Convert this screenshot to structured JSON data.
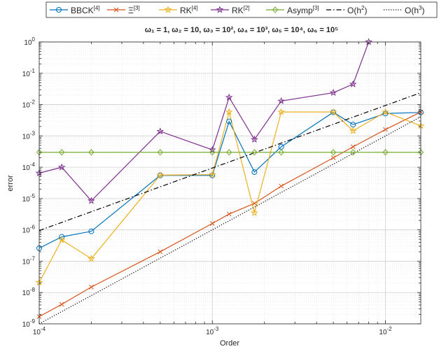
{
  "chart_data": {
    "type": "line",
    "title": "ω₁ = 1, ω₂ = 10, ω₃ = 10², ω₄ = 10³, ω₅ = 10⁴, ω₆ = 10⁵",
    "xlabel": "Order",
    "ylabel": "error",
    "xscale": "log",
    "yscale": "log",
    "xlim": [
      0.0001,
      0.016
    ],
    "ylim": [
      1e-09,
      1
    ],
    "grid": true,
    "minor_grid": true,
    "legend_position": "top, outside, horizontal",
    "x_ticks": [
      {
        "value": 0.0001,
        "base": "10",
        "exp": "-4"
      },
      {
        "value": 0.001,
        "base": "10",
        "exp": "-3"
      },
      {
        "value": 0.01,
        "base": "10",
        "exp": "-2"
      }
    ],
    "y_ticks": [
      {
        "value": 1,
        "base": "10",
        "exp": "0"
      },
      {
        "value": 0.1,
        "base": "10",
        "exp": "-1"
      },
      {
        "value": 0.01,
        "base": "10",
        "exp": "-2"
      },
      {
        "value": 0.001,
        "base": "10",
        "exp": "-3"
      },
      {
        "value": 0.0001,
        "base": "10",
        "exp": "-4"
      },
      {
        "value": 1e-05,
        "base": "10",
        "exp": "-5"
      },
      {
        "value": 1e-06,
        "base": "10",
        "exp": "-6"
      },
      {
        "value": 1e-07,
        "base": "10",
        "exp": "-7"
      },
      {
        "value": 1e-08,
        "base": "10",
        "exp": "-8"
      },
      {
        "value": 1e-09,
        "base": "10",
        "exp": "-9"
      }
    ],
    "series": [
      {
        "name": "BBCK",
        "name_sup": "[4]",
        "color": "#0072BD",
        "marker": "circle",
        "dash": "solid",
        "x": [
          0.0001,
          0.000135,
          0.0002,
          0.0005,
          0.001,
          0.00125,
          0.00175,
          0.0025,
          0.005,
          0.0065,
          0.01,
          0.016
        ],
        "y": [
          2.6e-07,
          6e-07,
          9e-07,
          5.5e-05,
          5.5e-05,
          0.0029,
          7e-05,
          0.00045,
          0.0057,
          0.0023,
          0.0052,
          0.0056
        ]
      },
      {
        "name": "Ξ",
        "name_sup": "[3]",
        "color": "#D95319",
        "marker": "x",
        "dash": "solid",
        "x": [
          0.0001,
          0.000135,
          0.0002,
          0.0005,
          0.001,
          0.00125,
          0.00175,
          0.0025,
          0.005,
          0.0065,
          0.01,
          0.016
        ],
        "y": [
          1.7e-09,
          4.2e-09,
          1.5e-08,
          2e-07,
          1.6e-06,
          3.2e-06,
          7e-06,
          2.5e-05,
          0.0002,
          0.00045,
          0.0016,
          0.0058
        ]
      },
      {
        "name": "RK",
        "name_sup": "[4]",
        "color": "#EDB120",
        "marker": "star",
        "dash": "solid",
        "x": [
          0.0001,
          0.000135,
          0.0002,
          0.0005,
          0.001,
          0.00125,
          0.00175,
          0.0025,
          0.005,
          0.0065,
          0.01,
          0.016
        ],
        "y": [
          2.1e-08,
          4.8e-07,
          1.2e-07,
          5.6e-05,
          5.8e-05,
          0.0058,
          3.5e-06,
          0.0058,
          0.0058,
          0.00145,
          0.0058,
          0.0021
        ]
      },
      {
        "name": "RK",
        "name_sup": "[2]",
        "color": "#7E2F8E",
        "marker": "star",
        "dash": "solid",
        "x": [
          0.0001,
          0.000135,
          0.0002,
          0.0005,
          0.001,
          0.00125,
          0.00175,
          0.0025,
          0.005,
          0.0065,
          0.008
        ],
        "y": [
          6.5e-05,
          0.0001,
          8.5e-06,
          0.0014,
          0.00036,
          0.017,
          0.00077,
          0.013,
          0.024,
          0.045,
          1.0
        ]
      },
      {
        "name": "Asymp",
        "name_sup": "[3]",
        "color": "#77AC30",
        "marker": "diamond",
        "dash": "solid",
        "x": [
          0.0001,
          0.000135,
          0.0002,
          0.0005,
          0.001,
          0.00125,
          0.00175,
          0.0025,
          0.005,
          0.0065,
          0.01,
          0.016
        ],
        "y": [
          0.0003,
          0.0003,
          0.0003,
          0.0003,
          0.0003,
          0.0003,
          0.0003,
          0.0003,
          0.0003,
          0.0003,
          0.0003,
          0.0003
        ]
      },
      {
        "name": "O(h",
        "name_sup": "2",
        "name_suffix": ")",
        "color": "#000000",
        "marker": "none",
        "dash": "dashdot",
        "x": [
          0.0001,
          0.016
        ],
        "y": [
          9.5e-07,
          0.024
        ]
      },
      {
        "name": "O(h",
        "name_sup": "3",
        "name_suffix": ")",
        "color": "#000000",
        "marker": "none",
        "dash": "dotted",
        "x": [
          0.0001,
          0.016
        ],
        "y": [
          1e-09,
          0.0041
        ]
      }
    ]
  }
}
